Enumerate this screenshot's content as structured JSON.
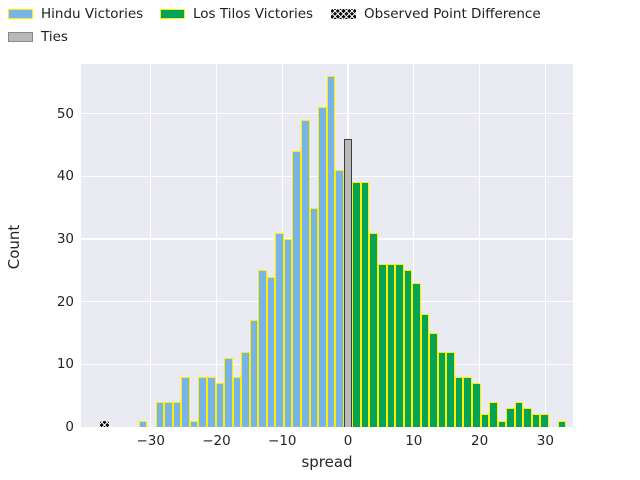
{
  "legend": {
    "items": [
      {
        "label": "Hindu Victories",
        "swatch": "hindu"
      },
      {
        "label": "Los Tilos Victories",
        "swatch": "green"
      },
      {
        "label": "Observed Point Difference",
        "swatch": "observed"
      },
      {
        "label": "Ties",
        "swatch": "ties"
      }
    ]
  },
  "chart_data": {
    "type": "bar",
    "subtype": "histogram",
    "title": "",
    "xlabel": "spread",
    "ylabel": "Count",
    "xlim": [
      -40.6,
      34.2
    ],
    "ylim": [
      0,
      57.9
    ],
    "grid": true,
    "legend_position": "top",
    "background": "#eaeaf2",
    "gridline_color": "#ffffff",
    "bin_width": 1.3,
    "x_ticks": {
      "values": [
        -30,
        -20,
        -10,
        0,
        10,
        20,
        30
      ],
      "labels": [
        "−30",
        "−20",
        "−10",
        "0",
        "10",
        "20",
        "30"
      ]
    },
    "y_ticks": {
      "values": [
        0,
        10,
        20,
        30,
        40,
        50
      ],
      "labels": [
        "0",
        "10",
        "20",
        "30",
        "40",
        "50"
      ]
    },
    "series": [
      {
        "name": "Hindu Victories",
        "color": "#79b4e8",
        "edge": "#ffee00",
        "hatch": false,
        "bars": [
          [
            -31.2,
            1
          ],
          [
            -28.6,
            4
          ],
          [
            -27.3,
            4
          ],
          [
            -26.0,
            4
          ],
          [
            -24.7,
            8
          ],
          [
            -23.4,
            1
          ],
          [
            -22.1,
            8
          ],
          [
            -20.8,
            8
          ],
          [
            -19.5,
            7
          ],
          [
            -18.2,
            11
          ],
          [
            -16.9,
            8
          ],
          [
            -15.6,
            12
          ],
          [
            -14.3,
            17
          ],
          [
            -13.0,
            25
          ],
          [
            -11.7,
            24
          ],
          [
            -10.4,
            31
          ],
          [
            -9.1,
            30
          ],
          [
            -7.8,
            44
          ],
          [
            -6.5,
            49
          ],
          [
            -5.2,
            35
          ],
          [
            -3.9,
            51
          ],
          [
            -2.6,
            56
          ],
          [
            -1.3,
            41
          ]
        ]
      },
      {
        "name": "Los Tilos Victories",
        "color": "#05a356",
        "edge": "#ffee00",
        "hatch": false,
        "bars": [
          [
            1.3,
            39
          ],
          [
            2.6,
            39
          ],
          [
            3.9,
            31
          ],
          [
            5.2,
            26
          ],
          [
            6.5,
            26
          ],
          [
            7.8,
            26
          ],
          [
            9.1,
            25
          ],
          [
            10.4,
            23
          ],
          [
            11.7,
            18
          ],
          [
            13.0,
            15
          ],
          [
            14.3,
            12
          ],
          [
            15.6,
            12
          ],
          [
            16.9,
            8
          ],
          [
            18.2,
            8
          ],
          [
            19.5,
            7
          ],
          [
            20.8,
            2
          ],
          [
            22.1,
            4
          ],
          [
            23.4,
            1
          ],
          [
            24.7,
            3
          ],
          [
            26.0,
            4
          ],
          [
            27.3,
            3
          ],
          [
            28.6,
            2
          ],
          [
            29.9,
            2
          ],
          [
            32.5,
            1
          ]
        ]
      },
      {
        "name": "Ties",
        "color": "#b9b9b9",
        "edge": "#3c3c3c",
        "hatch": false,
        "bars": [
          [
            0,
            46
          ]
        ]
      },
      {
        "name": "Observed Point Difference",
        "color": "#0a0a0a",
        "edge": "#0a0a0a",
        "hatch": true,
        "bars": [
          [
            -37,
            1
          ]
        ]
      }
    ]
  }
}
